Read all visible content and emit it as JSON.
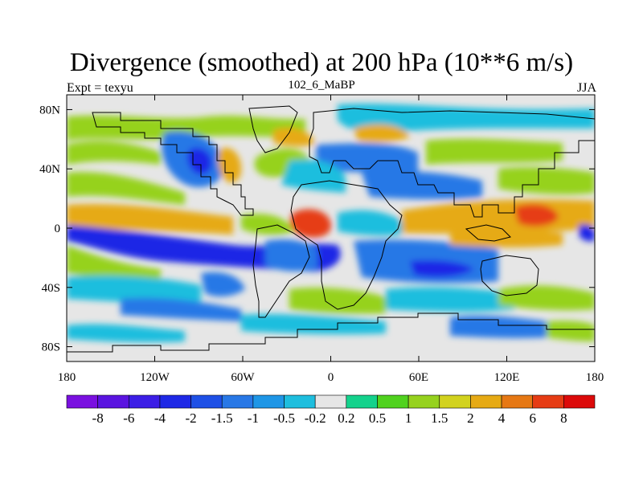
{
  "title": "Divergence (smoothed) at 200 hPa (10**6 m/s)",
  "left_label": "Expt = texyu",
  "center_label": "102_6_MaBP",
  "right_label": "JJA",
  "map": {
    "lon_range": [
      -180,
      180
    ],
    "lat_range": [
      -90,
      90
    ],
    "lat_ticks": [
      {
        "value": 80,
        "label": "80N"
      },
      {
        "value": 40,
        "label": "40N"
      },
      {
        "value": 0,
        "label": "0"
      },
      {
        "value": -40,
        "label": "40S"
      },
      {
        "value": -80,
        "label": "80S"
      }
    ],
    "lon_ticks": [
      {
        "value": -180,
        "label": "180"
      },
      {
        "value": -120,
        "label": "120W"
      },
      {
        "value": -60,
        "label": "60W"
      },
      {
        "value": 0,
        "label": "0"
      },
      {
        "value": 60,
        "label": "60E"
      },
      {
        "value": 120,
        "label": "120E"
      },
      {
        "value": 180,
        "label": "180"
      }
    ],
    "background_color": "#e6e6e6"
  },
  "colorbar": {
    "colors": [
      "#7a10e0",
      "#5a14e0",
      "#3c1ee6",
      "#1e28e6",
      "#1e50e6",
      "#2878e6",
      "#1e96e6",
      "#1ebede",
      "#e6e6e6",
      "#14d28c",
      "#50d21e",
      "#96d21e",
      "#d2d21e",
      "#e6aa14",
      "#e67814",
      "#e63c14",
      "#dc0a0a"
    ],
    "labels": [
      "-8",
      "-6",
      "-4",
      "-2",
      "-1.5",
      "-1",
      "-0.5",
      "-0.2",
      "0.2",
      "0.5",
      "1",
      "1.5",
      "2",
      "4",
      "6",
      "8"
    ]
  },
  "colors": {
    "strong_positive": "#e63c14",
    "positive": "#e6aa14",
    "weak_positive": "#96d21e",
    "near_zero_positive": "#14d28c",
    "near_zero_negative": "#1ebede",
    "negative": "#2878e6",
    "strong_negative": "#1e28e6"
  }
}
